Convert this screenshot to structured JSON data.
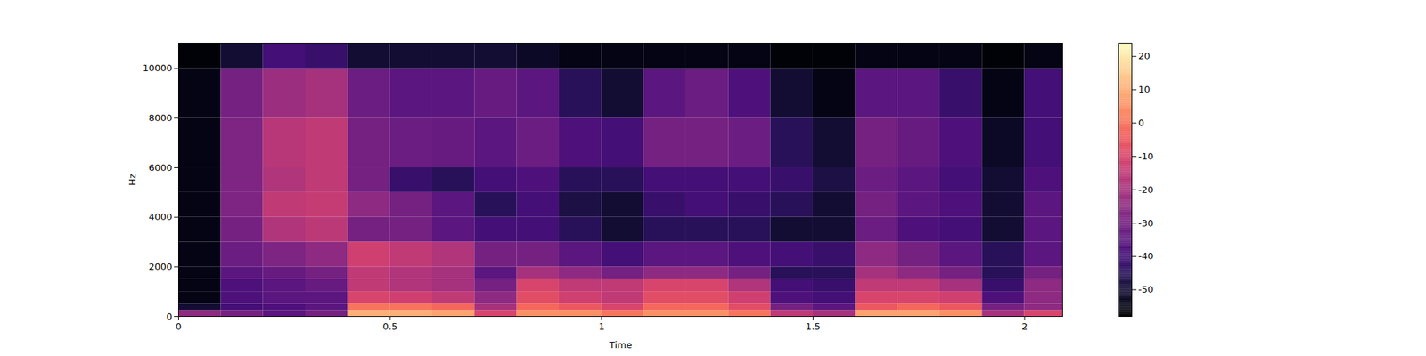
{
  "chart_data": {
    "type": "heatmap",
    "x_label": "Time",
    "y_label": "Hz",
    "xlim": [
      0,
      2.09
    ],
    "xticks": [
      0,
      0.5,
      1,
      1.5,
      2
    ],
    "ylim": [
      0,
      11025
    ],
    "yticks": [
      0,
      2000,
      4000,
      6000,
      8000,
      10000
    ],
    "grid": false,
    "x_edges": [
      0,
      0.1,
      0.2,
      0.3,
      0.4,
      0.5,
      0.6,
      0.7,
      0.8,
      0.9,
      1.0,
      1.1,
      1.2,
      1.3,
      1.4,
      1.5,
      1.6,
      1.7,
      1.8,
      1.9,
      2.0,
      2.09
    ],
    "y_edges": [
      0,
      250,
      500,
      1000,
      1500,
      2000,
      3000,
      4000,
      5000,
      6000,
      8000,
      10000,
      11025
    ],
    "values": [
      [
        -25,
        -50,
        -55,
        -55,
        -55,
        -55,
        -55,
        -55,
        -55,
        -55,
        -55,
        -57
      ],
      [
        -30,
        -40,
        -38,
        -38,
        -35,
        -32,
        -30,
        -28,
        -28,
        -28,
        -30,
        -50
      ],
      [
        -35,
        -38,
        -35,
        -35,
        -33,
        -28,
        -18,
        -15,
        -18,
        -17,
        -22,
        -40
      ],
      [
        -30,
        -35,
        -35,
        -33,
        -30,
        -25,
        -16,
        -14,
        -15,
        -15,
        -20,
        -42
      ],
      [
        10,
        0,
        -10,
        -15,
        -15,
        -12,
        -30,
        -25,
        -30,
        -30,
        -32,
        -50
      ],
      [
        10,
        0,
        -12,
        -18,
        -18,
        -15,
        -30,
        -30,
        -42,
        -32,
        -35,
        -50
      ],
      [
        8,
        -2,
        -15,
        -20,
        -20,
        -18,
        -35,
        -35,
        -45,
        -33,
        -35,
        -50
      ],
      [
        -10,
        -20,
        -25,
        -30,
        -35,
        -30,
        -40,
        -45,
        -40,
        -35,
        -33,
        -50
      ],
      [
        5,
        -2,
        -8,
        -10,
        -20,
        -30,
        -40,
        -40,
        -38,
        -32,
        -35,
        -52
      ],
      [
        5,
        -5,
        -12,
        -15,
        -25,
        -35,
        -45,
        -48,
        -45,
        -38,
        -45,
        -55
      ],
      [
        0,
        -10,
        -15,
        -15,
        -30,
        -40,
        -50,
        -50,
        -45,
        -40,
        -50,
        -55
      ],
      [
        5,
        -2,
        -8,
        -10,
        -25,
        -35,
        -45,
        -42,
        -40,
        -30,
        -35,
        -55
      ],
      [
        5,
        -2,
        -8,
        -10,
        -25,
        -35,
        -45,
        -40,
        -40,
        -30,
        -32,
        -55
      ],
      [
        0,
        -8,
        -12,
        -18,
        -30,
        -38,
        -45,
        -42,
        -40,
        -32,
        -38,
        -55
      ],
      [
        -15,
        -30,
        -38,
        -40,
        -45,
        -40,
        -50,
        -45,
        -42,
        -45,
        -50,
        -57
      ],
      [
        -20,
        -35,
        -40,
        -42,
        -45,
        -42,
        -50,
        -50,
        -48,
        -50,
        -55,
        -57
      ],
      [
        8,
        -5,
        -10,
        -15,
        -20,
        -25,
        -32,
        -30,
        -32,
        -30,
        -35,
        -55
      ],
      [
        8,
        -2,
        -10,
        -15,
        -25,
        -30,
        -38,
        -35,
        -35,
        -33,
        -35,
        -55
      ],
      [
        5,
        -5,
        -12,
        -20,
        -30,
        -35,
        -40,
        -38,
        -40,
        -38,
        -42,
        -55
      ],
      [
        -20,
        -30,
        -38,
        -42,
        -45,
        -45,
        -50,
        -50,
        -50,
        -52,
        -55,
        -57
      ],
      [
        -10,
        -25,
        -25,
        -25,
        -30,
        -35,
        -35,
        -35,
        -38,
        -40,
        -40,
        -55
      ]
    ],
    "colorbar": {
      "range": [
        -58,
        24
      ],
      "ticks": [
        -50,
        -40,
        -30,
        -20,
        -10,
        0,
        10,
        20
      ]
    }
  }
}
